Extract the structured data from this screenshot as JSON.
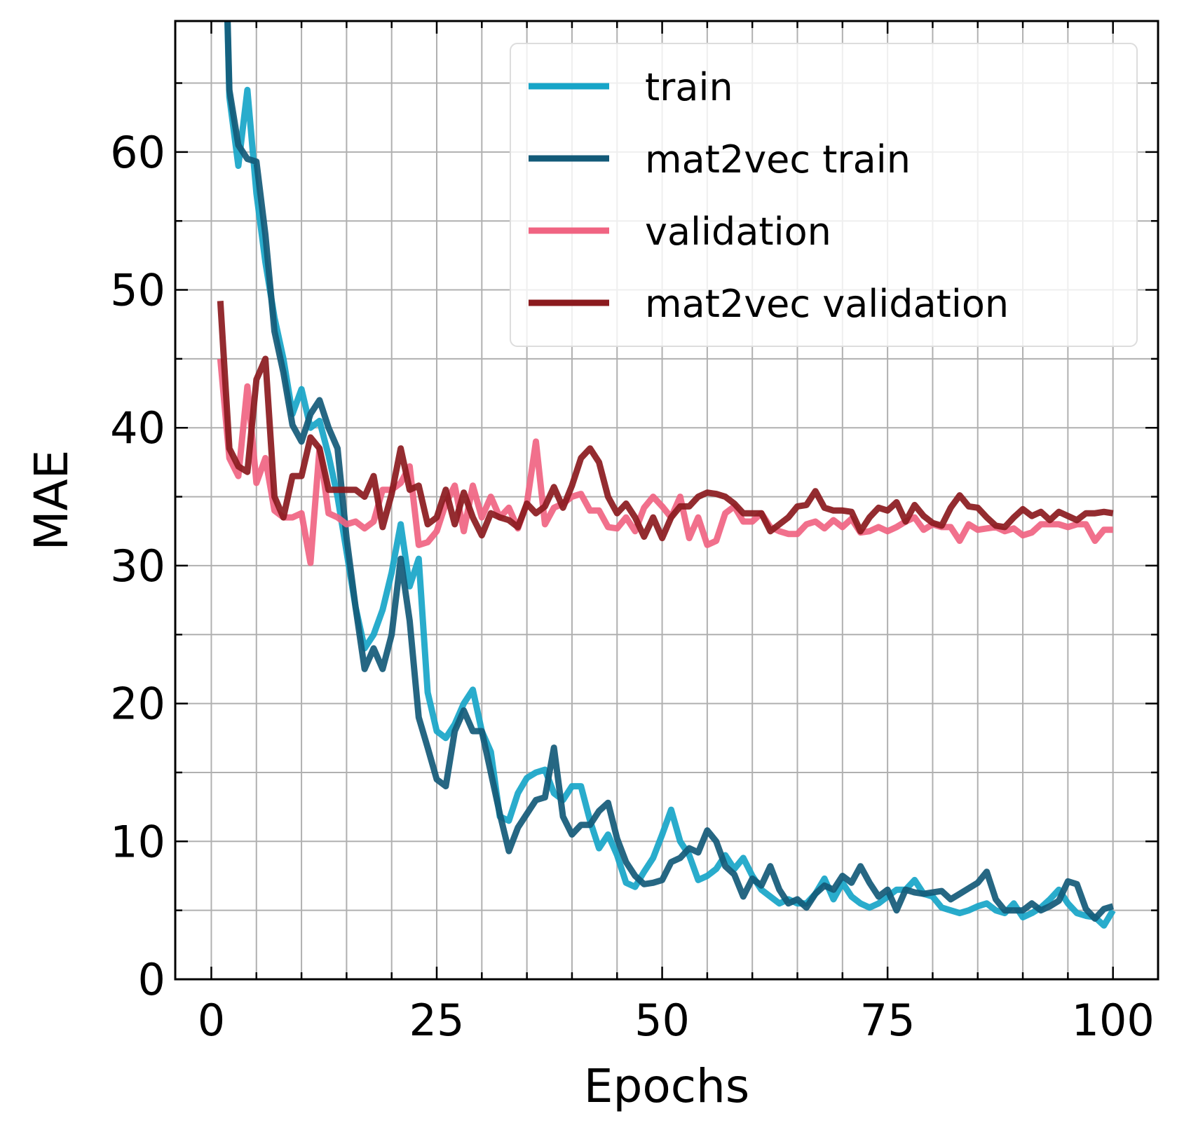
{
  "chart_data": {
    "type": "line",
    "title": "",
    "xlabel": "Epochs",
    "ylabel": "MAE",
    "xlim": [
      -4,
      105
    ],
    "ylim": [
      0,
      69.5
    ],
    "xticks": [
      0,
      25,
      50,
      75,
      100
    ],
    "yticks": [
      0,
      10,
      20,
      30,
      40,
      50,
      60
    ],
    "grid": true,
    "legend_position": "top-right",
    "x": [
      1,
      2,
      3,
      4,
      5,
      6,
      7,
      8,
      9,
      10,
      11,
      12,
      13,
      14,
      15,
      16,
      17,
      18,
      19,
      20,
      21,
      22,
      23,
      24,
      25,
      26,
      27,
      28,
      29,
      30,
      31,
      32,
      33,
      34,
      35,
      36,
      37,
      38,
      39,
      40,
      41,
      42,
      43,
      44,
      45,
      46,
      47,
      48,
      49,
      50,
      51,
      52,
      53,
      54,
      55,
      56,
      57,
      58,
      59,
      60,
      61,
      62,
      63,
      64,
      65,
      66,
      67,
      68,
      69,
      70,
      71,
      72,
      73,
      74,
      75,
      76,
      77,
      78,
      79,
      80,
      81,
      82,
      83,
      84,
      85,
      86,
      87,
      88,
      89,
      90,
      91,
      92,
      93,
      94,
      95,
      96,
      97,
      98,
      99,
      100
    ],
    "series": [
      {
        "name": "train",
        "color": "#17a5c8",
        "values": [
          90,
          64,
          59,
          64.5,
          57,
          52,
          48,
          45,
          41,
          42.8,
          40,
          40.5,
          38,
          35,
          31,
          27,
          24,
          25,
          26.8,
          29.5,
          33,
          28.5,
          30.5,
          20.8,
          18,
          17.5,
          18.5,
          20,
          21,
          18,
          16.5,
          11.8,
          11.5,
          13.5,
          14.6,
          15,
          15.2,
          13.5,
          13,
          14,
          14,
          11.5,
          9.5,
          10.5,
          9,
          7,
          6.7,
          7.8,
          8.8,
          10.5,
          12.3,
          10,
          9,
          7.2,
          7.5,
          8,
          9,
          8,
          8.8,
          7.5,
          6.5,
          6,
          5.5,
          5.8,
          5.5,
          5.5,
          6.2,
          7.3,
          5.8,
          7,
          6,
          5.5,
          5.2,
          5.5,
          6,
          6.5,
          6.5,
          7.2,
          6.2,
          6,
          5.2,
          5,
          4.8,
          5,
          5.3,
          5.5,
          5,
          4.8,
          5.5,
          4.5,
          4.8,
          5.2,
          5.8,
          6.5,
          5.5,
          4.8,
          4.6,
          4.5,
          3.9,
          5
        ]
      },
      {
        "name": "mat2vec train",
        "color": "#135a78",
        "values": [
          90,
          64.5,
          60.5,
          59.5,
          59.3,
          54,
          47,
          44,
          40.2,
          39,
          41,
          42,
          40,
          38.5,
          32,
          27,
          22.5,
          24,
          22.5,
          25,
          30.5,
          26,
          19,
          16.8,
          14.5,
          14,
          18,
          19.5,
          18,
          18,
          15,
          12,
          9.3,
          11,
          12,
          13,
          13.2,
          16.8,
          11.8,
          10.5,
          11.2,
          11.2,
          12.2,
          12.8,
          10.2,
          8.5,
          7.5,
          6.9,
          7,
          7.2,
          8.5,
          8.8,
          9.5,
          9.2,
          10.8,
          10,
          8.2,
          7.6,
          6,
          7.3,
          6.8,
          8.2,
          6.5,
          5.5,
          5.8,
          5.2,
          6.2,
          6.8,
          6.5,
          7.5,
          7,
          8.2,
          7,
          6,
          6.5,
          5,
          6.5,
          6.3,
          6.2,
          6.3,
          6.4,
          5.8,
          6.2,
          6.6,
          7,
          7.8,
          5.8,
          5,
          5,
          5,
          5.5,
          5,
          5.3,
          5.7,
          7.1,
          6.9,
          5.1,
          4.4,
          5.1,
          5.3
        ]
      },
      {
        "name": "validation",
        "color": "#f06482",
        "values": [
          45,
          37.8,
          36.5,
          43,
          36,
          37.8,
          34,
          33.5,
          33.5,
          33.8,
          30.2,
          38.5,
          33.8,
          33.5,
          33,
          33.2,
          32.7,
          33.2,
          35.5,
          35.5,
          36,
          37.2,
          31.5,
          31.7,
          32.5,
          34.5,
          35.8,
          32.5,
          35.8,
          33.5,
          35,
          33.5,
          34.2,
          32.7,
          34.5,
          39,
          33,
          34.2,
          34.5,
          35,
          35.2,
          34,
          34,
          32.8,
          32.7,
          33.5,
          32.5,
          34.2,
          35,
          34.3,
          33.5,
          35,
          32,
          33.5,
          31.5,
          31.8,
          33.8,
          34.3,
          33.2,
          33.2,
          33.8,
          32.8,
          32.5,
          32.3,
          32.3,
          33,
          33.2,
          32.7,
          33.3,
          32.8,
          33.4,
          32.4,
          32.5,
          32.8,
          32.5,
          32.8,
          33.2,
          33.5,
          32.6,
          33,
          32.8,
          32.8,
          31.8,
          33,
          32.6,
          32.7,
          32.8,
          32.5,
          32.7,
          32.2,
          32.4,
          33,
          33,
          33,
          32.8,
          33,
          33,
          31.8,
          32.6,
          32.6
        ]
      },
      {
        "name": "mat2vec validation",
        "color": "#8b1a1e",
        "values": [
          49.2,
          38.5,
          37.2,
          36.8,
          43.5,
          45,
          35,
          33.5,
          36.5,
          36.5,
          39.3,
          38.5,
          35.5,
          35.5,
          35.5,
          35.5,
          35,
          36.5,
          32.8,
          35.2,
          38.5,
          35.5,
          35.8,
          33,
          33.5,
          35.5,
          33,
          35.3,
          33.5,
          32.2,
          33.8,
          33.5,
          33.3,
          32.8,
          34.5,
          33.8,
          34.3,
          35.7,
          34.2,
          35.8,
          37.8,
          38.5,
          37.5,
          35,
          33.8,
          34.5,
          33.5,
          32.1,
          33.5,
          32,
          33.5,
          34.3,
          34.3,
          35,
          35.3,
          35.2,
          35,
          34.5,
          33.8,
          33.8,
          33.8,
          32.5,
          33,
          33.5,
          34.3,
          34.4,
          35.4,
          34.2,
          34,
          34,
          33.9,
          32.5,
          33.5,
          34.2,
          34,
          34.6,
          33.2,
          34.4,
          33.6,
          33.1,
          32.9,
          34.2,
          35.1,
          34.3,
          34.2,
          33.5,
          32.9,
          32.8,
          33.5,
          34.1,
          33.6,
          33.9,
          33.3,
          33.9,
          33.6,
          33.3,
          33.8,
          33.8,
          33.9,
          33.8
        ]
      }
    ]
  }
}
